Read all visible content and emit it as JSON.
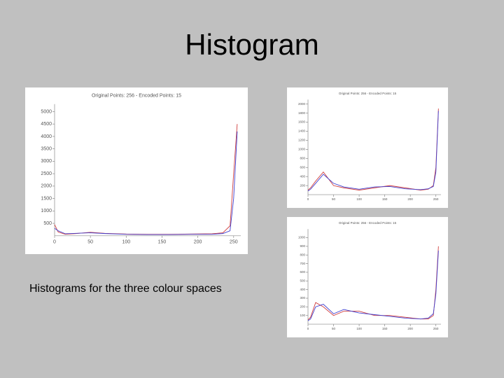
{
  "title": "Histogram",
  "caption": "Histograms for the three colour spaces",
  "chart_data": [
    {
      "type": "line",
      "title": "Original Points: 256 - Encoded Points: 15",
      "x": [
        0,
        5,
        15,
        30,
        50,
        70,
        100,
        130,
        160,
        190,
        220,
        235,
        245,
        250,
        255
      ],
      "series": [
        {
          "color": "#d04040",
          "values": [
            450,
            150,
            60,
            90,
            140,
            100,
            70,
            60,
            60,
            70,
            80,
            120,
            400,
            2500,
            4500
          ]
        },
        {
          "color": "#4040d0",
          "values": [
            300,
            200,
            80,
            100,
            120,
            90,
            60,
            50,
            50,
            60,
            60,
            90,
            200,
            1500,
            4200
          ]
        }
      ],
      "xlim": [
        0,
        260
      ],
      "ylim": [
        0,
        5300
      ],
      "xticks": [
        0,
        50,
        100,
        150,
        200,
        250
      ],
      "yticks": [
        500,
        1000,
        1500,
        2000,
        2500,
        3000,
        3500,
        4000,
        4500,
        5000
      ]
    },
    {
      "type": "line",
      "title": "Original Points: 256 - Encoded Points: 15",
      "x": [
        0,
        5,
        15,
        30,
        50,
        70,
        100,
        130,
        160,
        190,
        220,
        235,
        245,
        250,
        255
      ],
      "series": [
        {
          "color": "#d04040",
          "values": [
            100,
            150,
            300,
            500,
            200,
            150,
            100,
            150,
            200,
            150,
            100,
            120,
            200,
            600,
            1900
          ]
        },
        {
          "color": "#4040d0",
          "values": [
            80,
            120,
            250,
            450,
            250,
            170,
            120,
            170,
            180,
            130,
            110,
            130,
            180,
            500,
            1850
          ]
        }
      ],
      "xlim": [
        0,
        260
      ],
      "ylim": [
        0,
        2100
      ],
      "xticks": [
        0,
        50,
        100,
        150,
        200,
        250
      ],
      "yticks": [
        200,
        400,
        600,
        800,
        1000,
        1200,
        1400,
        1600,
        1800,
        2000
      ]
    },
    {
      "type": "line",
      "title": "Original Points: 256 - Encoded Points: 15",
      "x": [
        0,
        5,
        15,
        30,
        50,
        70,
        100,
        130,
        160,
        190,
        220,
        235,
        245,
        250,
        255
      ],
      "series": [
        {
          "color": "#d04040",
          "values": [
            50,
            80,
            250,
            200,
            100,
            150,
            150,
            100,
            100,
            80,
            60,
            60,
            100,
            400,
            900
          ]
        },
        {
          "color": "#4040d0",
          "values": [
            40,
            60,
            200,
            230,
            120,
            170,
            130,
            110,
            90,
            70,
            60,
            70,
            120,
            350,
            850
          ]
        }
      ],
      "xlim": [
        0,
        260
      ],
      "ylim": [
        0,
        1100
      ],
      "xticks": [
        0,
        50,
        100,
        150,
        200,
        250
      ],
      "yticks": [
        100,
        200,
        300,
        400,
        500,
        600,
        700,
        800,
        900,
        1000
      ]
    }
  ]
}
